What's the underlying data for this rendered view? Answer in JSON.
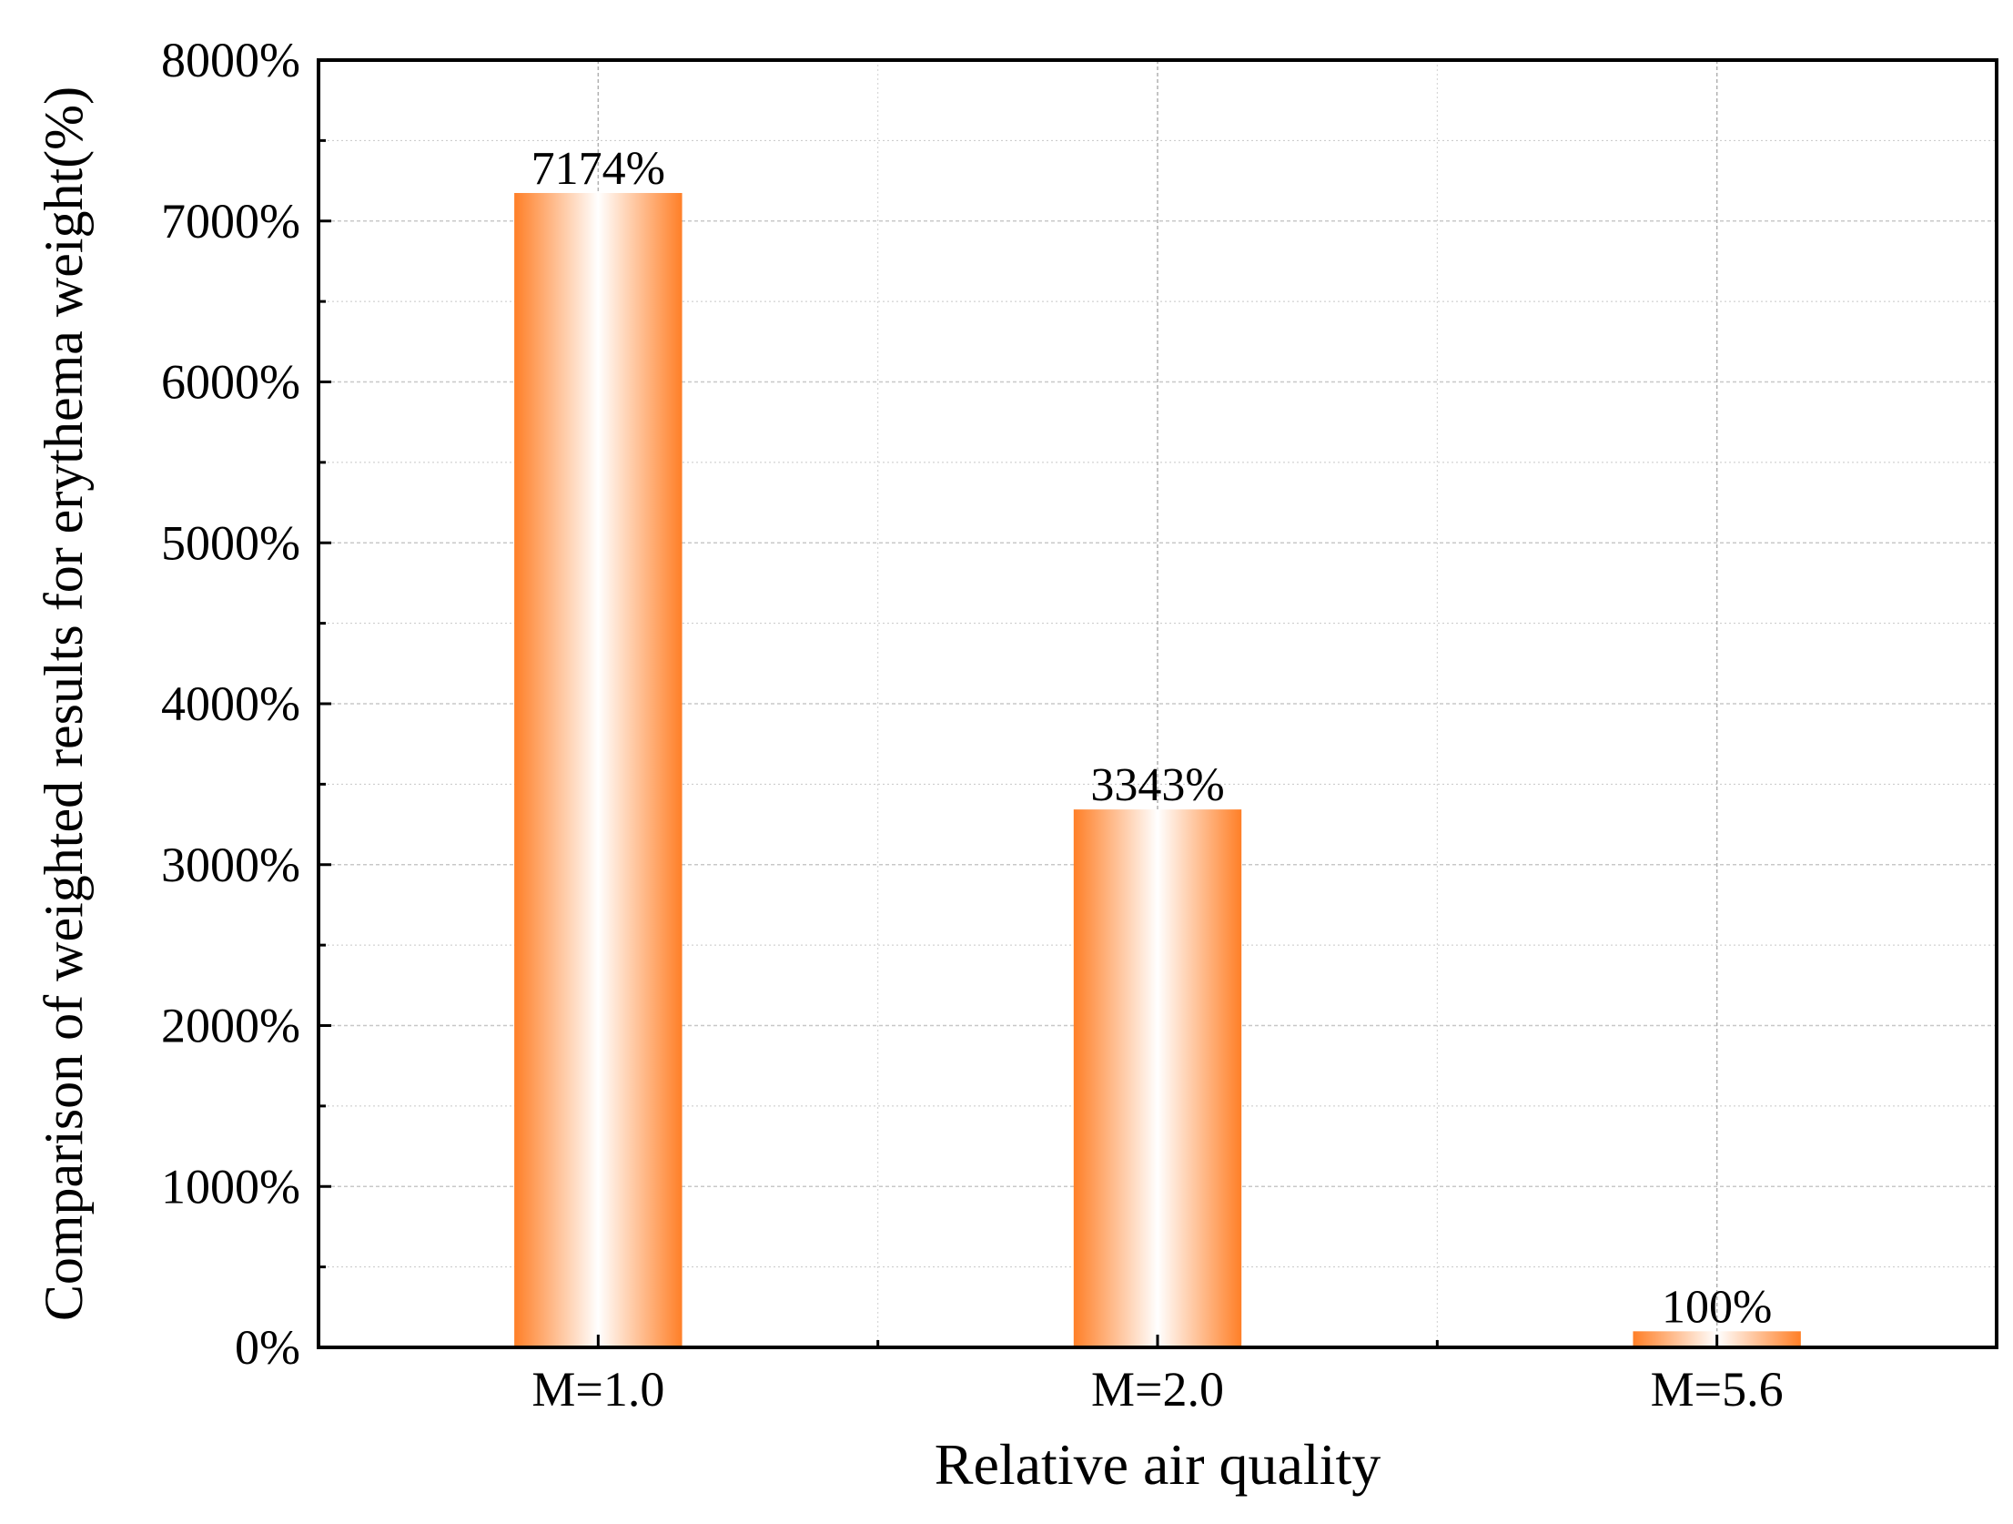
{
  "chart_data": {
    "type": "bar",
    "title": "",
    "xlabel": "Relative air quality",
    "ylabel": "Comparison of weighted results for erythema weight(%)",
    "categories": [
      "M=1.0",
      "M=2.0",
      "M=5.6"
    ],
    "values": [
      7174,
      3343,
      100
    ],
    "data_labels": [
      "7174%",
      "3343%",
      "100%"
    ],
    "ylim": [
      0,
      8000
    ],
    "yticks": [
      0,
      1000,
      2000,
      3000,
      4000,
      5000,
      6000,
      7000,
      8000
    ],
    "ytick_labels": [
      "0%",
      "1000%",
      "2000%",
      "3000%",
      "4000%",
      "5000%",
      "6000%",
      "7000%",
      "8000%"
    ],
    "grid": true,
    "bar_color": "#ff7f27",
    "bar_highlight_color": "#ffffff",
    "legend": "none"
  }
}
